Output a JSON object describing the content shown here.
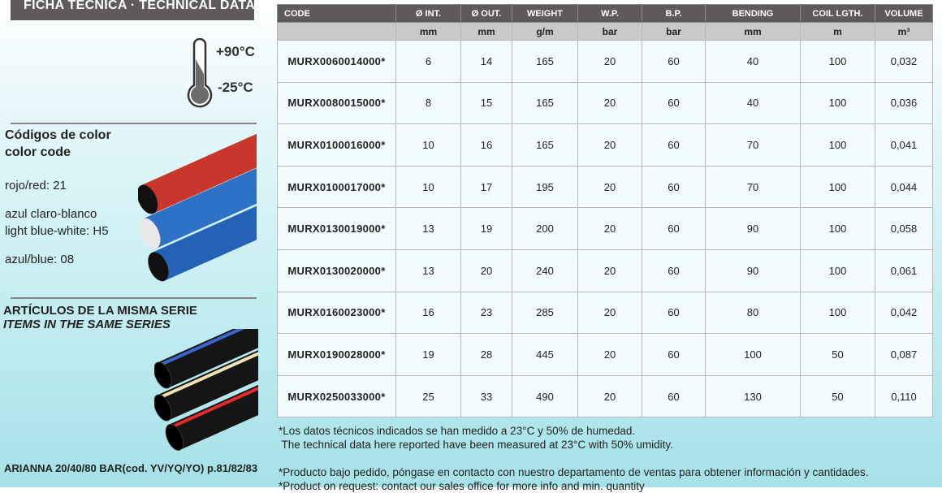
{
  "title": "FICHA TECNICA · TECHNICAL DATA",
  "temperature": {
    "max": "+90°C",
    "min": "-25°C",
    "icon": "thermometer-icon"
  },
  "color_codes": {
    "heading_es": "Códigos de color",
    "heading_en": "color code",
    "items": [
      "rojo/red: 21",
      "azul claro-blanco",
      "light blue-white: H5",
      "azul/blue: 08"
    ]
  },
  "series": {
    "heading_es": "ARTÍCULOS DE LA MISMA SERIE",
    "heading_en": "ITEMS IN THE SAME SERIES",
    "reference": "ARIANNA 20/40/80 BAR(cod. YV/YQ/YO) p.81/82/83"
  },
  "table": {
    "headers": [
      "CODE",
      "Ø INT.",
      "Ø OUT.",
      "WEIGHT",
      "W.P.",
      "B.P.",
      "BENDING",
      "COIL LGTH.",
      "VOLUME"
    ],
    "units": [
      "",
      "mm",
      "mm",
      "g/m",
      "bar",
      "bar",
      "mm",
      "m",
      "m³"
    ],
    "rows": [
      [
        "MURX0060014000*",
        "6",
        "14",
        "165",
        "20",
        "60",
        "40",
        "100",
        "0,032"
      ],
      [
        "MURX0080015000*",
        "8",
        "15",
        "165",
        "20",
        "60",
        "40",
        "100",
        "0,036"
      ],
      [
        "MURX0100016000*",
        "10",
        "16",
        "165",
        "20",
        "60",
        "70",
        "100",
        "0,041"
      ],
      [
        "MURX0100017000*",
        "10",
        "17",
        "195",
        "20",
        "60",
        "70",
        "100",
        "0,044"
      ],
      [
        "MURX0130019000*",
        "13",
        "19",
        "200",
        "20",
        "60",
        "90",
        "100",
        "0,058"
      ],
      [
        "MURX0130020000*",
        "13",
        "20",
        "240",
        "20",
        "60",
        "90",
        "100",
        "0,061"
      ],
      [
        "MURX0160023000*",
        "16",
        "23",
        "285",
        "20",
        "60",
        "80",
        "100",
        "0,042"
      ],
      [
        "MURX0190028000*",
        "19",
        "28",
        "445",
        "20",
        "60",
        "100",
        "50",
        "0,087"
      ],
      [
        "MURX0250033000*",
        "25",
        "33",
        "490",
        "20",
        "60",
        "130",
        "50",
        "0,110"
      ]
    ]
  },
  "notes": [
    "*Los datos técnicos indicados se han medido a 23°C y 50% de humedad.",
    " The technical data here reported have been measured at 23°C with 50% umidity.",
    "*Producto bajo pedido, póngase en contacto con nuestro departamento de ventas para obtener información y cantidades.",
    "*Product on request: contact our sales office for more info and min. quantity"
  ],
  "colors": {
    "header_bg": "#5e5a5a",
    "units_bg": "#c9c9c9",
    "red_pipe": "#c8362c",
    "blue_pipe": "#2a6fc4"
  }
}
